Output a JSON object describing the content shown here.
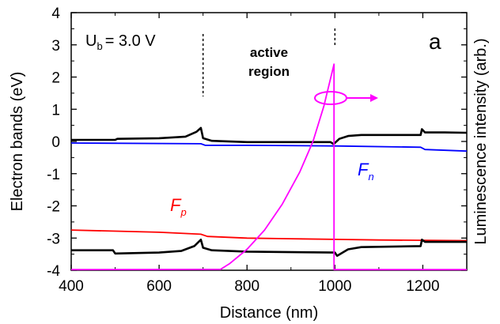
{
  "chart_data": {
    "type": "line",
    "panel_label": "a",
    "xlabel": "Distance (nm)",
    "ylabel": "Electron bands (eV)",
    "y2label": "Luminescence intensity (arb.)",
    "xlim": [
      400,
      1300
    ],
    "ylim": [
      -4,
      4
    ],
    "x_ticks": [
      400,
      600,
      800,
      1000,
      1200
    ],
    "y_ticks": [
      4,
      3,
      2,
      1,
      0,
      -1,
      -2,
      -3,
      -4
    ],
    "grid": false,
    "legend": "none",
    "annotations": {
      "voltage_prefix": "U",
      "voltage_sub": "b",
      "voltage_value": "= 3.0 V",
      "active_region_line1": "active",
      "active_region_line2": "region",
      "fp_main": "F",
      "fp_sub": "p",
      "fn_main": "F",
      "fn_sub": "n"
    },
    "active_region_boundaries": [
      700,
      1000
    ],
    "series": [
      {
        "color": "#000000",
        "points": [
          [
            400,
            0.05
          ],
          [
            500,
            0.05
          ],
          [
            505,
            0.08
          ],
          [
            600,
            0.1
          ],
          [
            660,
            0.15
          ],
          [
            685,
            0.3
          ],
          [
            695,
            0.42
          ],
          [
            700,
            0.1
          ],
          [
            720,
            0.02
          ],
          [
            800,
            -0.02
          ],
          [
            900,
            -0.02
          ],
          [
            990,
            -0.02
          ],
          [
            997,
            -0.08
          ],
          [
            1010,
            0.08
          ],
          [
            1030,
            0.17
          ],
          [
            1060,
            0.2
          ],
          [
            1100,
            0.2
          ],
          [
            1195,
            0.2
          ],
          [
            1198,
            0.38
          ],
          [
            1205,
            0.28
          ],
          [
            1250,
            0.28
          ],
          [
            1300,
            0.27
          ]
        ]
      },
      {
        "color": "#0000ff",
        "points": [
          [
            400,
            -0.05
          ],
          [
            695,
            -0.07
          ],
          [
            705,
            -0.12
          ],
          [
            800,
            -0.12
          ],
          [
            1000,
            -0.14
          ],
          [
            1195,
            -0.18
          ],
          [
            1205,
            -0.25
          ],
          [
            1300,
            -0.3
          ]
        ]
      },
      {
        "color": "#ff0000",
        "points": [
          [
            400,
            -2.75
          ],
          [
            600,
            -2.82
          ],
          [
            695,
            -2.88
          ],
          [
            710,
            -2.95
          ],
          [
            800,
            -3.0
          ],
          [
            900,
            -3.02
          ],
          [
            1000,
            -3.04
          ],
          [
            1100,
            -3.06
          ],
          [
            1300,
            -3.08
          ]
        ]
      },
      {
        "color": "#000000",
        "points": [
          [
            400,
            -3.38
          ],
          [
            495,
            -3.38
          ],
          [
            500,
            -3.48
          ],
          [
            600,
            -3.45
          ],
          [
            650,
            -3.4
          ],
          [
            680,
            -3.25
          ],
          [
            695,
            -3.05
          ],
          [
            700,
            -3.3
          ],
          [
            720,
            -3.38
          ],
          [
            800,
            -3.42
          ],
          [
            1000,
            -3.45
          ],
          [
            1005,
            -3.55
          ],
          [
            1030,
            -3.35
          ],
          [
            1060,
            -3.28
          ],
          [
            1195,
            -3.25
          ],
          [
            1198,
            -3.05
          ],
          [
            1205,
            -3.12
          ],
          [
            1300,
            -3.12
          ]
        ]
      },
      {
        "color": "#ff00ff",
        "points": [
          [
            400,
            -3.98
          ],
          [
            740,
            -3.97
          ],
          [
            760,
            -3.8
          ],
          [
            800,
            -3.35
          ],
          [
            840,
            -2.75
          ],
          [
            880,
            -1.95
          ],
          [
            920,
            -0.95
          ],
          [
            950,
            0.0
          ],
          [
            975,
            1.1
          ],
          [
            998,
            2.4
          ],
          [
            998,
            -3.98
          ],
          [
            1300,
            -3.98
          ]
        ]
      }
    ]
  }
}
